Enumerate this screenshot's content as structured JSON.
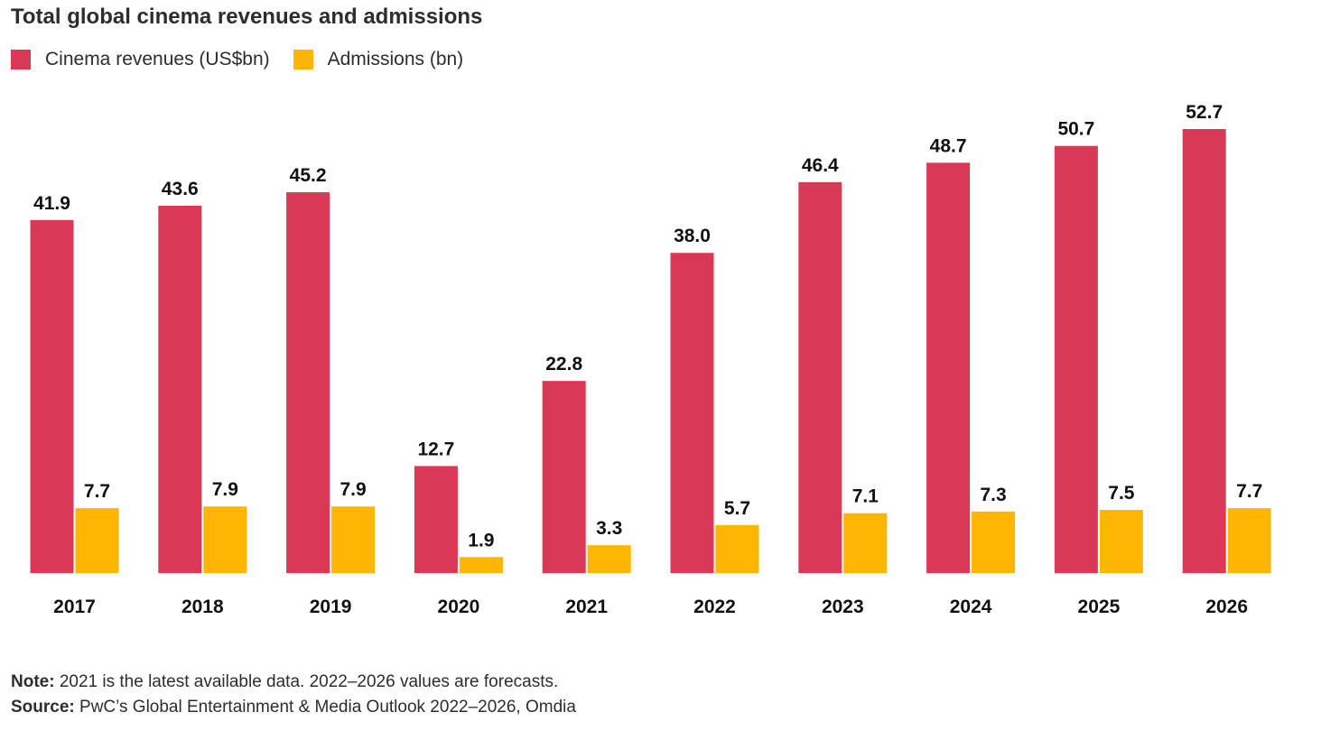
{
  "chart_data": {
    "type": "bar",
    "title": "Total global cinema revenues and admissions",
    "categories": [
      "2017",
      "2018",
      "2019",
      "2020",
      "2021",
      "2022",
      "2023",
      "2024",
      "2025",
      "2026"
    ],
    "series": [
      {
        "name": "Cinema revenues (US$bn)",
        "color": "#d93954",
        "values": [
          41.9,
          43.6,
          45.2,
          12.7,
          22.8,
          38.0,
          46.4,
          48.7,
          50.7,
          52.7
        ],
        "labels": [
          "41.9",
          "43.6",
          "45.2",
          "12.7",
          "22.8",
          "38.0",
          "46.4",
          "48.7",
          "50.7",
          "52.7"
        ]
      },
      {
        "name": "Admissions (bn)",
        "color": "#ffb600",
        "values": [
          7.7,
          7.9,
          7.9,
          1.9,
          3.3,
          5.7,
          7.1,
          7.3,
          7.5,
          7.7
        ],
        "labels": [
          "7.7",
          "7.9",
          "7.9",
          "1.9",
          "3.3",
          "5.7",
          "7.1",
          "7.3",
          "7.5",
          "7.7"
        ]
      }
    ],
    "xlabel": "",
    "ylabel": "",
    "ylim": [
      0,
      52.7
    ],
    "grid": false,
    "legend_position": "top-left"
  },
  "footnotes": {
    "note_label": "Note:",
    "note_text": " 2021 is the latest available data. 2022–2026 values are forecasts.",
    "source_label": "Source:",
    "source_text": " PwC’s Global Entertainment & Media Outlook 2022–2026, Omdia"
  }
}
